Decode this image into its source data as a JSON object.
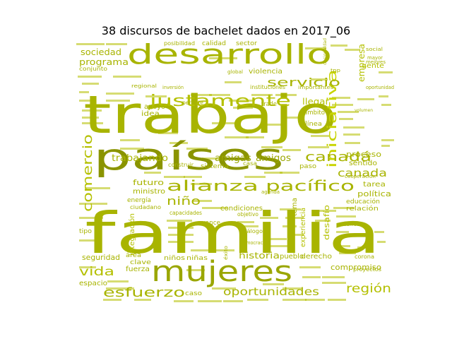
{
  "title": "38 discursos de bachelet dados en 2017_06",
  "colors": {
    "c1": "#a8b400",
    "c2": "#bcc800",
    "c3": "#909800",
    "c4": "#c8d400",
    "c5": "#9aa600"
  },
  "words": [
    {
      "text": "familia",
      "color": "#a8b400"
    },
    {
      "text": "trabajo",
      "color": "#a8b400"
    },
    {
      "text": "países",
      "color": "#8a9400"
    },
    {
      "text": "desarrollo",
      "color": "#a8b400"
    },
    {
      "text": "mujeres",
      "color": "#9aa600"
    },
    {
      "text": "justamente",
      "color": "#b4c000"
    },
    {
      "text": "alianza",
      "color": "#a8b400"
    },
    {
      "text": "pacífico",
      "color": "#a8b400"
    },
    {
      "text": "comercio",
      "color": "#b4c000"
    },
    {
      "text": "iniciativa",
      "color": "#c8d400"
    },
    {
      "text": "canadá",
      "color": "#a8b400"
    },
    {
      "text": "canada",
      "color": "#a8b400"
    },
    {
      "text": "servicio",
      "color": "#a8b400"
    },
    {
      "text": "niño",
      "color": "#a8b400"
    },
    {
      "text": "vida",
      "color": "#b4c000"
    },
    {
      "text": "esfuerzo",
      "color": "#a8b400"
    },
    {
      "text": "oportunidades",
      "color": "#a8b400"
    },
    {
      "text": "región",
      "color": "#b4c000"
    },
    {
      "text": "trabajando",
      "color": "#a8b400"
    },
    {
      "text": "amigas",
      "color": "#9aa600"
    },
    {
      "text": "amigos",
      "color": "#9aa600"
    },
    {
      "text": "programa",
      "color": "#a8b400"
    },
    {
      "text": "sociedad",
      "color": "#a8b400"
    },
    {
      "text": "historia",
      "color": "#a8b400"
    },
    {
      "text": "compromiso",
      "color": "#a8b400"
    },
    {
      "text": "proceso",
      "color": "#a8b400"
    },
    {
      "text": "futuro",
      "color": "#a8b400"
    },
    {
      "text": "ministro",
      "color": "#a8b400"
    },
    {
      "text": "política",
      "color": "#a8b400"
    },
    {
      "text": "empresa",
      "color": "#b4c000"
    },
    {
      "text": "llegar",
      "color": "#b4c000"
    },
    {
      "text": "idea",
      "color": "#a8b400"
    },
    {
      "text": "apoyo",
      "color": "#a8b400"
    },
    {
      "text": "seguridad",
      "color": "#a8b400"
    },
    {
      "text": "espacio",
      "color": "#a8b400"
    },
    {
      "text": "condiciones",
      "color": "#a8b400"
    },
    {
      "text": "integración",
      "color": "#b4c000"
    },
    {
      "text": "desafío",
      "color": "#b4c000"
    },
    {
      "text": "tema",
      "color": "#a8b400"
    },
    {
      "text": "experiencia",
      "color": "#b4c000"
    },
    {
      "text": "derecho",
      "color": "#a8b400"
    },
    {
      "text": "pueblo",
      "color": "#a8b400"
    },
    {
      "text": "sentido",
      "color": "#a8b400"
    },
    {
      "text": "calidad",
      "color": "#a8b400"
    },
    {
      "text": "sector",
      "color": "#a8b400"
    },
    {
      "text": "posibilidad",
      "color": "#a8b400"
    },
    {
      "text": "violencia",
      "color": "#a8b400"
    },
    {
      "text": "gente",
      "color": "#b4c000"
    },
    {
      "text": "fuerza",
      "color": "#a8b400"
    },
    {
      "text": "clave",
      "color": "#a8b400"
    },
    {
      "text": "área",
      "color": "#a8b400"
    },
    {
      "text": "niños",
      "color": "#a8b400"
    },
    {
      "text": "niñas",
      "color": "#a8b400"
    },
    {
      "text": "energía",
      "color": "#a8b400"
    },
    {
      "text": "avance",
      "color": "#a8b400"
    },
    {
      "text": "educación",
      "color": "#a8b400"
    },
    {
      "text": "relación",
      "color": "#a8b400"
    },
    {
      "text": "tarea",
      "color": "#a8b400"
    },
    {
      "text": "sistema",
      "color": "#a8b400"
    },
    {
      "text": "casa",
      "color": "#a8b400"
    },
    {
      "text": "paso",
      "color": "#a8b400"
    },
    {
      "text": "línea",
      "color": "#a8b400"
    },
    {
      "text": "ámbito",
      "color": "#a8b400"
    },
    {
      "text": "capacidades",
      "color": "#a8b400"
    },
    {
      "text": "ciudadano",
      "color": "#a8b400"
    },
    {
      "text": "conjunto",
      "color": "#a8b400"
    },
    {
      "text": "pública",
      "color": "#a8b400"
    },
    {
      "text": "global",
      "color": "#a8b400"
    },
    {
      "text": "trade",
      "color": "#a8b400"
    },
    {
      "text": "tipo",
      "color": "#a8b400"
    },
    {
      "text": "social",
      "color": "#a8b400"
    },
    {
      "text": "mayor",
      "color": "#a8b400"
    },
    {
      "text": "mejores",
      "color": "#a8b400"
    },
    {
      "text": "cooperación",
      "color": "#a8b400"
    },
    {
      "text": "proyectos",
      "color": "#a8b400"
    },
    {
      "text": "corona",
      "color": "#a8b400"
    },
    {
      "text": "diálogo",
      "color": "#a8b400"
    },
    {
      "text": "democracia",
      "color": "#a8b400"
    },
    {
      "text": "objetivo",
      "color": "#a8b400"
    },
    {
      "text": "caso",
      "color": "#a8b400"
    },
    {
      "text": "éxito",
      "color": "#a8b400"
    },
    {
      "text": "agenda",
      "color": "#a8b400"
    },
    {
      "text": "construir",
      "color": "#a8b400"
    },
    {
      "text": "permite",
      "color": "#a8b400"
    },
    {
      "text": "instituciones",
      "color": "#a8b400"
    },
    {
      "text": "importantes",
      "color": "#a8b400"
    },
    {
      "text": "tpp",
      "color": "#a8b400"
    },
    {
      "text": "oportunidad",
      "color": "#a8b400"
    },
    {
      "text": "regional",
      "color": "#a8b400"
    },
    {
      "text": "volumen",
      "color": "#a8b400"
    },
    {
      "text": "inversión",
      "color": "#a8b400"
    },
    {
      "text": "desigualdad",
      "color": "#a8b400"
    }
  ]
}
